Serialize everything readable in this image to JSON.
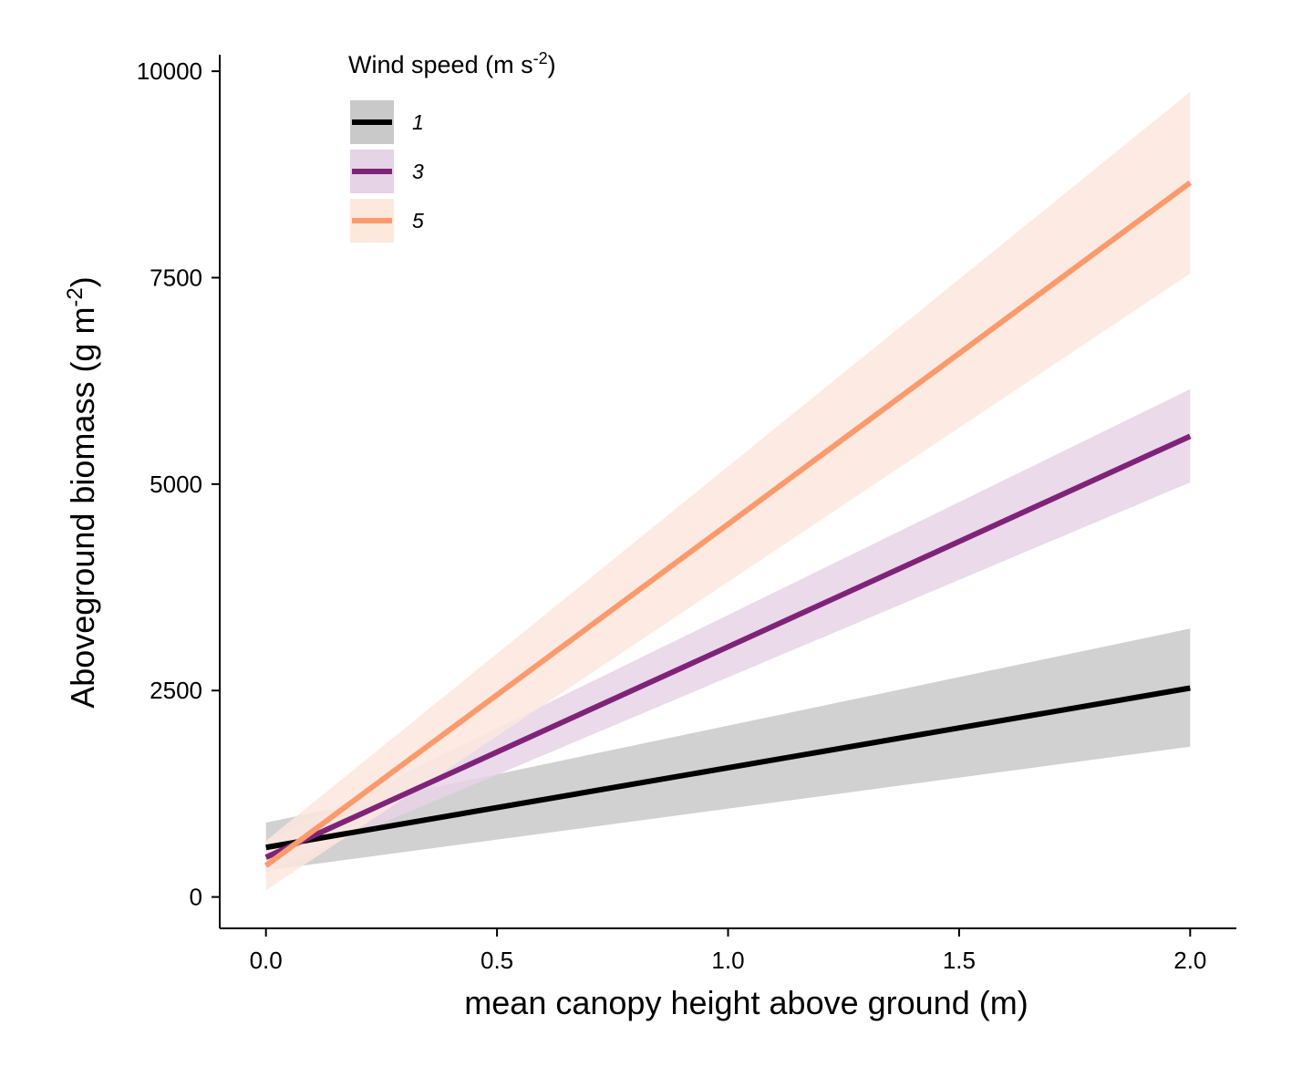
{
  "chart_data": {
    "type": "line",
    "xlabel": "mean canopy height above ground (m)",
    "ylabel": "Aboveground biomass (g m",
    "ylabel_sup": "-2",
    "ylabel_close": ")",
    "xlim": [
      -0.1,
      2.1
    ],
    "ylim": [
      -380,
      10200
    ],
    "x_ticks": [
      0.0,
      0.5,
      1.0,
      1.5,
      2.0
    ],
    "x_tick_labels": [
      "0.0",
      "0.5",
      "1.0",
      "1.5",
      "2.0"
    ],
    "y_ticks": [
      0,
      2500,
      5000,
      7500,
      10000
    ],
    "y_tick_labels": [
      "0",
      "2500",
      "5000",
      "7500",
      "10000"
    ],
    "grid": false,
    "legend": {
      "title": "Wind speed (m s",
      "title_sup": "-2",
      "title_close": ")",
      "placement": "top-left"
    },
    "series": [
      {
        "name": "1",
        "color": "#000000",
        "band_color": "#c9c9c9",
        "x": [
          0,
          2
        ],
        "y": [
          600,
          2530
        ],
        "lower": [
          320,
          1820
        ],
        "upper": [
          900,
          3250
        ]
      },
      {
        "name": "3",
        "color": "#7f2378",
        "band_color": "#e6d3e6",
        "x": [
          0,
          2
        ],
        "y": [
          480,
          5580
        ],
        "lower": [
          300,
          5020
        ],
        "upper": [
          680,
          6150
        ]
      },
      {
        "name": "5",
        "color": "#fc9a6c",
        "band_color": "#fde8de",
        "x": [
          0,
          2
        ],
        "y": [
          380,
          8650
        ],
        "lower": [
          80,
          7550
        ],
        "upper": [
          680,
          9750
        ]
      }
    ]
  }
}
